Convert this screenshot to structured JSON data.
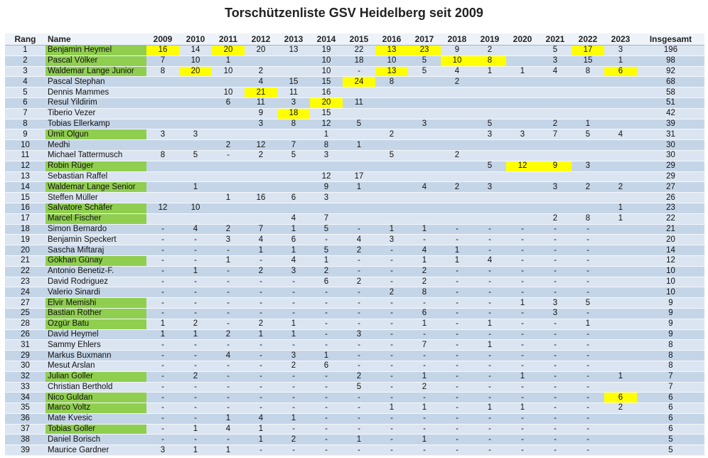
{
  "title": "Torschützenliste GSV Heidelberg seit 2009",
  "colors": {
    "header_bg": "#eef3f9",
    "row_light": "#dbe5f1",
    "row_dark": "#c5d5e8",
    "name_green": "#8fce4f",
    "highlight_yellow": "#ffff00"
  },
  "headers": [
    "Rang",
    "Name",
    "2009",
    "2010",
    "2011",
    "2012",
    "2013",
    "2014",
    "2015",
    "2016",
    "2017",
    "2018",
    "2019",
    "2020",
    "2021",
    "2022",
    "2023",
    "Insgesamt"
  ],
  "rows": [
    {
      "rank": "1",
      "name": "Benjamin Heymel",
      "green": true,
      "years": [
        "16",
        "14",
        "20",
        "20",
        "13",
        "19",
        "22",
        "13",
        "23",
        "9",
        "2",
        "",
        "5",
        "17",
        "3"
      ],
      "hl": [
        0,
        2,
        7,
        8,
        13
      ],
      "total": "196"
    },
    {
      "rank": "2",
      "name": "Pascal Völker",
      "green": true,
      "years": [
        "7",
        "10",
        "1",
        "",
        "",
        "10",
        "18",
        "10",
        "5",
        "10",
        "8",
        "",
        "3",
        "15",
        "1"
      ],
      "hl": [
        9,
        10
      ],
      "total": "98"
    },
    {
      "rank": "3",
      "name": "Waldemar Lange Junior",
      "green": true,
      "years": [
        "8",
        "20",
        "10",
        "2",
        "",
        "10",
        "-",
        "13",
        "5",
        "4",
        "1",
        "1",
        "4",
        "8",
        "6"
      ],
      "hl": [
        1,
        7,
        14
      ],
      "total": "92"
    },
    {
      "rank": "4",
      "name": "Pascal Stephan",
      "green": false,
      "years": [
        "",
        "",
        "",
        "4",
        "15",
        "15",
        "24",
        "8",
        "",
        "2",
        "",
        "",
        "",
        "",
        ""
      ],
      "hl": [
        6
      ],
      "total": "68"
    },
    {
      "rank": "5",
      "name": "Dennis Mammes",
      "green": false,
      "years": [
        "",
        "",
        "10",
        "21",
        "11",
        "16",
        "",
        "",
        "",
        "",
        "",
        "",
        "",
        "",
        ""
      ],
      "hl": [
        3
      ],
      "total": "58"
    },
    {
      "rank": "6",
      "name": "Resul Yildirim",
      "green": false,
      "years": [
        "",
        "",
        "6",
        "11",
        "3",
        "20",
        "11",
        "",
        "",
        "",
        "",
        "",
        "",
        "",
        ""
      ],
      "hl": [
        5
      ],
      "total": "51"
    },
    {
      "rank": "7",
      "name": "Tiberio Vezer",
      "green": false,
      "years": [
        "",
        "",
        "",
        "9",
        "18",
        "15",
        "",
        "",
        "",
        "",
        "",
        "",
        "",
        "",
        ""
      ],
      "hl": [
        4
      ],
      "total": "42"
    },
    {
      "rank": "8",
      "name": "Tobias Ellerkamp",
      "green": false,
      "years": [
        "",
        "",
        "",
        "3",
        "8",
        "12",
        "5",
        "",
        "3",
        "",
        "5",
        "",
        "2",
        "1",
        ""
      ],
      "hl": [],
      "total": "39"
    },
    {
      "rank": "9",
      "name": "Ümit Olgun",
      "green": true,
      "years": [
        "3",
        "3",
        "",
        "",
        "",
        "1",
        "",
        "2",
        "",
        "",
        "3",
        "3",
        "7",
        "5",
        "4"
      ],
      "hl": [],
      "total": "31"
    },
    {
      "rank": "10",
      "name": "Medhi",
      "green": false,
      "years": [
        "",
        "",
        "2",
        "12",
        "7",
        "8",
        "1",
        "",
        "",
        "",
        "",
        "",
        "",
        "",
        ""
      ],
      "hl": [],
      "total": "30"
    },
    {
      "rank": "11",
      "name": "Michael Tattermusch",
      "green": false,
      "years": [
        "8",
        "5",
        "-",
        "2",
        "5",
        "3",
        "",
        "5",
        "",
        "2",
        "",
        "",
        "",
        "",
        ""
      ],
      "hl": [],
      "total": "30"
    },
    {
      "rank": "12",
      "name": "Robin Rüger",
      "green": true,
      "years": [
        "",
        "",
        "",
        "",
        "",
        "",
        "",
        "",
        "",
        "",
        "5",
        "12",
        "9",
        "3",
        ""
      ],
      "hl": [
        11,
        12
      ],
      "total": "29"
    },
    {
      "rank": "13",
      "name": "Sebastian Raffel",
      "green": false,
      "years": [
        "",
        "",
        "",
        "",
        "",
        "12",
        "17",
        "",
        "",
        "",
        "",
        "",
        "",
        "",
        ""
      ],
      "hl": [],
      "total": "29"
    },
    {
      "rank": "14",
      "name": "Waldemar Lange Senior",
      "green": true,
      "years": [
        "",
        "1",
        "",
        "",
        "",
        "9",
        "1",
        "",
        "4",
        "2",
        "3",
        "",
        "3",
        "2",
        "2"
      ],
      "hl": [],
      "total": "27"
    },
    {
      "rank": "15",
      "name": "Steffen Müller",
      "green": false,
      "years": [
        "",
        "",
        "1",
        "16",
        "6",
        "3",
        "",
        "",
        "",
        "",
        "",
        "",
        "",
        "",
        ""
      ],
      "hl": [],
      "total": "26"
    },
    {
      "rank": "16",
      "name": "Salvatore Schäfer",
      "green": true,
      "years": [
        "12",
        "10",
        "",
        "",
        "",
        "",
        "",
        "",
        "",
        "",
        "",
        "",
        "",
        "",
        "1"
      ],
      "hl": [],
      "total": "23"
    },
    {
      "rank": "17",
      "name": "Marcel Fischer",
      "green": true,
      "years": [
        "",
        "",
        "",
        "",
        "4",
        "7",
        "",
        "",
        "",
        "",
        "",
        "",
        "2",
        "8",
        "1"
      ],
      "hl": [],
      "total": "22"
    },
    {
      "rank": "18",
      "name": "Simon Bernardo",
      "green": false,
      "years": [
        "-",
        "4",
        "2",
        "7",
        "1",
        "5",
        "-",
        "1",
        "1",
        "-",
        "-",
        "-",
        "-",
        "-",
        ""
      ],
      "hl": [],
      "total": "21"
    },
    {
      "rank": "19",
      "name": "Benjamin Speckert",
      "green": false,
      "years": [
        "-",
        "-",
        "3",
        "4",
        "6",
        "-",
        "4",
        "3",
        "-",
        "-",
        "-",
        "-",
        "-",
        "-",
        ""
      ],
      "hl": [],
      "total": "20"
    },
    {
      "rank": "20",
      "name": "Sascha Miftaraj",
      "green": false,
      "years": [
        "-",
        "-",
        "-",
        "1",
        "1",
        "5",
        "2",
        "-",
        "4",
        "1",
        "-",
        "-",
        "-",
        "-",
        ""
      ],
      "hl": [],
      "total": "14"
    },
    {
      "rank": "21",
      "name": "Gökhan Günay",
      "green": true,
      "years": [
        "-",
        "-",
        "1",
        "-",
        "4",
        "1",
        "-",
        "-",
        "1",
        "1",
        "4",
        "-",
        "-",
        "-",
        ""
      ],
      "hl": [],
      "total": "12"
    },
    {
      "rank": "22",
      "name": "Antonio Benetiz-F.",
      "green": false,
      "years": [
        "-",
        "1",
        "-",
        "2",
        "3",
        "2",
        "-",
        "-",
        "2",
        "-",
        "-",
        "-",
        "-",
        "-",
        ""
      ],
      "hl": [],
      "total": "10"
    },
    {
      "rank": "23",
      "name": "David Rodriguez",
      "green": false,
      "years": [
        "-",
        "-",
        "-",
        "-",
        "-",
        "6",
        "2",
        "-",
        "2",
        "-",
        "-",
        "-",
        "-",
        "-",
        ""
      ],
      "hl": [],
      "total": "10"
    },
    {
      "rank": "24",
      "name": "Valerio Sinardi",
      "green": false,
      "years": [
        "-",
        "-",
        "-",
        "-",
        "-",
        "-",
        "-",
        "2",
        "8",
        "-",
        "-",
        "-",
        "-",
        "-",
        ""
      ],
      "hl": [],
      "total": "10"
    },
    {
      "rank": "27",
      "name": "Elvir Memishi",
      "green": true,
      "years": [
        "-",
        "-",
        "-",
        "-",
        "-",
        "-",
        "-",
        "-",
        "-",
        "-",
        "-",
        "1",
        "3",
        "5",
        ""
      ],
      "hl": [],
      "total": "9"
    },
    {
      "rank": "25",
      "name": "Bastian Rother",
      "green": true,
      "years": [
        "-",
        "-",
        "-",
        "-",
        "-",
        "-",
        "-",
        "-",
        "6",
        "-",
        "-",
        "-",
        "3",
        "-",
        ""
      ],
      "hl": [],
      "total": "9"
    },
    {
      "rank": "28",
      "name": "Özgür Batu",
      "green": true,
      "years": [
        "1",
        "2",
        "-",
        "2",
        "1",
        "-",
        "-",
        "-",
        "1",
        "-",
        "1",
        "-",
        "-",
        "1",
        ""
      ],
      "hl": [],
      "total": "9"
    },
    {
      "rank": "26",
      "name": "David Heymel",
      "green": false,
      "years": [
        "1",
        "1",
        "2",
        "1",
        "1",
        "-",
        "3",
        "-",
        "-",
        "-",
        "-",
        "-",
        "-",
        "-",
        ""
      ],
      "hl": [],
      "total": "9"
    },
    {
      "rank": "31",
      "name": "Sammy Ehlers",
      "green": false,
      "years": [
        "-",
        "-",
        "-",
        "-",
        "-",
        "-",
        "-",
        "-",
        "7",
        "-",
        "1",
        "-",
        "-",
        "-",
        ""
      ],
      "hl": [],
      "total": "8"
    },
    {
      "rank": "29",
      "name": "Markus Buxmann",
      "green": false,
      "years": [
        "-",
        "-",
        "4",
        "-",
        "3",
        "1",
        "-",
        "-",
        "-",
        "-",
        "-",
        "-",
        "-",
        "-",
        ""
      ],
      "hl": [],
      "total": "8"
    },
    {
      "rank": "30",
      "name": "Mesut Arslan",
      "green": false,
      "years": [
        "-",
        "-",
        "-",
        "-",
        "2",
        "6",
        "-",
        "-",
        "-",
        "-",
        "-",
        "-",
        "-",
        "-",
        ""
      ],
      "hl": [],
      "total": "8"
    },
    {
      "rank": "32",
      "name": "Julian Goller",
      "green": true,
      "years": [
        "-",
        "2",
        "-",
        "-",
        "-",
        "-",
        "2",
        "-",
        "1",
        "-",
        "-",
        "1",
        "-",
        "-",
        "1"
      ],
      "hl": [],
      "total": "7"
    },
    {
      "rank": "33",
      "name": "Christian Berthold",
      "green": false,
      "years": [
        "-",
        "-",
        "-",
        "-",
        "-",
        "-",
        "5",
        "-",
        "2",
        "-",
        "-",
        "-",
        "-",
        "-",
        ""
      ],
      "hl": [],
      "total": "7"
    },
    {
      "rank": "34",
      "name": "Nico Guldan",
      "green": true,
      "years": [
        "-",
        "-",
        "-",
        "-",
        "-",
        "-",
        "-",
        "-",
        "-",
        "-",
        "-",
        "-",
        "-",
        "-",
        "6"
      ],
      "hl": [
        14
      ],
      "total": "6"
    },
    {
      "rank": "35",
      "name": "Marco Voltz",
      "green": true,
      "years": [
        "-",
        "-",
        "-",
        "-",
        "-",
        "-",
        "-",
        "1",
        "1",
        "-",
        "1",
        "1",
        "-",
        "-",
        "2"
      ],
      "hl": [],
      "total": "6"
    },
    {
      "rank": "36",
      "name": "Mate Kvesic",
      "green": false,
      "years": [
        "-",
        "-",
        "1",
        "4",
        "1",
        "-",
        "-",
        "-",
        "-",
        "-",
        "-",
        "-",
        "-",
        "-",
        ""
      ],
      "hl": [],
      "total": "6"
    },
    {
      "rank": "37",
      "name": "Tobias Goller",
      "green": true,
      "years": [
        "-",
        "1",
        "4",
        "1",
        "-",
        "-",
        "-",
        "-",
        "-",
        "-",
        "-",
        "-",
        "-",
        "-",
        ""
      ],
      "hl": [],
      "total": "6"
    },
    {
      "rank": "38",
      "name": "Daniel Borisch",
      "green": false,
      "years": [
        "-",
        "-",
        "-",
        "1",
        "2",
        "-",
        "1",
        "-",
        "1",
        "-",
        "-",
        "-",
        "-",
        "-",
        ""
      ],
      "hl": [],
      "total": "5"
    },
    {
      "rank": "39",
      "name": "Maurice Gardner",
      "green": false,
      "years": [
        "3",
        "1",
        "1",
        "-",
        "-",
        "-",
        "-",
        "-",
        "-",
        "-",
        "-",
        "-",
        "-",
        "-",
        ""
      ],
      "hl": [],
      "total": "5"
    }
  ]
}
